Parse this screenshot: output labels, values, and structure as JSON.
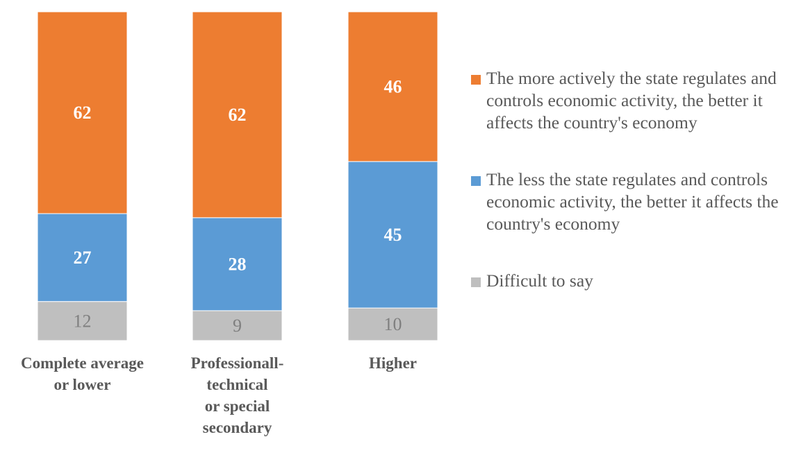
{
  "chart_data": {
    "type": "bar",
    "stacked": true,
    "percent_stacked": true,
    "title": "",
    "xlabel": "",
    "ylabel": "",
    "categories": [
      [
        "Complete average",
        "or lower"
      ],
      [
        "Professionall-",
        "technical",
        "or special",
        "secondary"
      ],
      [
        "Higher"
      ]
    ],
    "series": [
      {
        "name": "Difficult to say",
        "color": "#BFBFBF",
        "label_color": "#7F7F7F",
        "label_bold": false,
        "values": [
          12,
          9,
          10
        ]
      },
      {
        "name": "The less the state regulates and controls economic activity, the better it affects the country's economy",
        "color": "#5B9BD5",
        "label_color": "#FFFFFF",
        "label_bold": true,
        "values": [
          27,
          28,
          45
        ]
      },
      {
        "name": "The more actively the state regulates and controls economic activity, the better it affects the country's economy",
        "color": "#ED7D31",
        "label_color": "#FFFFFF",
        "label_bold": true,
        "values": [
          62,
          62,
          46
        ]
      }
    ],
    "legend_position": "right",
    "grid": false,
    "axes_visible": false
  },
  "legend": {
    "items": [
      {
        "label": "The more actively the state regulates and controls economic activity, the better it affects the country's economy",
        "color": "#ED7D31"
      },
      {
        "label": "The less the state regulates and controls economic activity, the better it affects the country's economy",
        "color": "#5B9BD5"
      },
      {
        "label": "Difficult to say",
        "color": "#BFBFBF"
      }
    ]
  }
}
